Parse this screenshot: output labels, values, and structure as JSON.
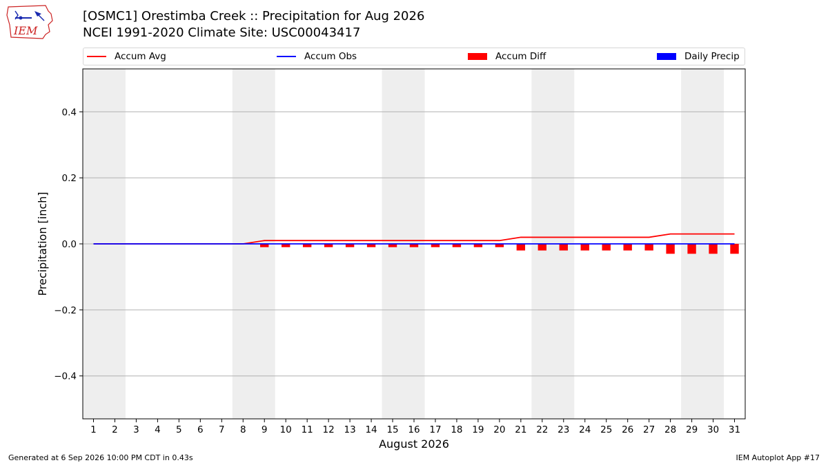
{
  "header": {
    "title_line1": "[OSMC1] Orestimba Creek :: Precipitation for Aug 2026",
    "title_line2": "NCEI 1991-2020 Climate Site: USC00043417",
    "logo_text": "IEM"
  },
  "legend": [
    {
      "label": "Accum Avg",
      "kind": "line",
      "color": "#ff0000"
    },
    {
      "label": "Accum Obs",
      "kind": "line",
      "color": "#0000ff"
    },
    {
      "label": "Accum Diff",
      "kind": "box",
      "color": "#ff0000"
    },
    {
      "label": "Daily Precip",
      "kind": "box",
      "color": "#0000ff"
    }
  ],
  "footer": {
    "generated": "Generated at 6 Sep 2026 10:00 PM CDT in 0.43s",
    "app": "IEM Autoplot App #17"
  },
  "chart_data": {
    "type": "line",
    "xlabel": "August 2026",
    "ylabel": "Precipitation [inch]",
    "xlim": [
      0.5,
      31.5
    ],
    "ylim": [
      -0.53,
      0.53
    ],
    "yticks": [
      -0.4,
      -0.2,
      0.0,
      0.2,
      0.4
    ],
    "ytick_labels": [
      "−0.4",
      "−0.2",
      "0.0",
      "0.2",
      "0.4"
    ],
    "x": [
      1,
      2,
      3,
      4,
      5,
      6,
      7,
      8,
      9,
      10,
      11,
      12,
      13,
      14,
      15,
      16,
      17,
      18,
      19,
      20,
      21,
      22,
      23,
      24,
      25,
      26,
      27,
      28,
      29,
      30,
      31
    ],
    "weekend_shading": [
      [
        0.5,
        2.5
      ],
      [
        7.5,
        9.5
      ],
      [
        14.5,
        16.5
      ],
      [
        21.5,
        23.5
      ],
      [
        28.5,
        30.5
      ]
    ],
    "series": [
      {
        "name": "Accum Avg",
        "kind": "line",
        "color": "#ff0000",
        "values": [
          0,
          0,
          0,
          0,
          0,
          0,
          0,
          0,
          0.01,
          0.01,
          0.01,
          0.01,
          0.01,
          0.01,
          0.01,
          0.01,
          0.01,
          0.01,
          0.01,
          0.01,
          0.02,
          0.02,
          0.02,
          0.02,
          0.02,
          0.02,
          0.02,
          0.03,
          0.03,
          0.03,
          0.03
        ]
      },
      {
        "name": "Accum Obs",
        "kind": "line",
        "color": "#0000ff",
        "values": [
          0,
          0,
          0,
          0,
          0,
          0,
          0,
          0,
          0,
          0,
          0,
          0,
          0,
          0,
          0,
          0,
          0,
          0,
          0,
          0,
          0,
          0,
          0,
          0,
          0,
          0,
          0,
          0,
          0,
          0,
          0
        ]
      },
      {
        "name": "Accum Diff",
        "kind": "bar",
        "color": "#ff0000",
        "values": [
          0,
          0,
          0,
          0,
          0,
          0,
          0,
          0,
          -0.01,
          -0.01,
          -0.01,
          -0.01,
          -0.01,
          -0.01,
          -0.01,
          -0.01,
          -0.01,
          -0.01,
          -0.01,
          -0.01,
          -0.02,
          -0.02,
          -0.02,
          -0.02,
          -0.02,
          -0.02,
          -0.02,
          -0.03,
          -0.03,
          -0.03,
          -0.03
        ]
      },
      {
        "name": "Daily Precip",
        "kind": "bar",
        "color": "#0000ff",
        "values": [
          0,
          0,
          0,
          0,
          0,
          0,
          0,
          0,
          0,
          0,
          0,
          0,
          0,
          0,
          0,
          0,
          0,
          0,
          0,
          0,
          0,
          0,
          0,
          0,
          0,
          0,
          0,
          0,
          0,
          0,
          0
        ]
      }
    ],
    "grid": "horizontal"
  }
}
